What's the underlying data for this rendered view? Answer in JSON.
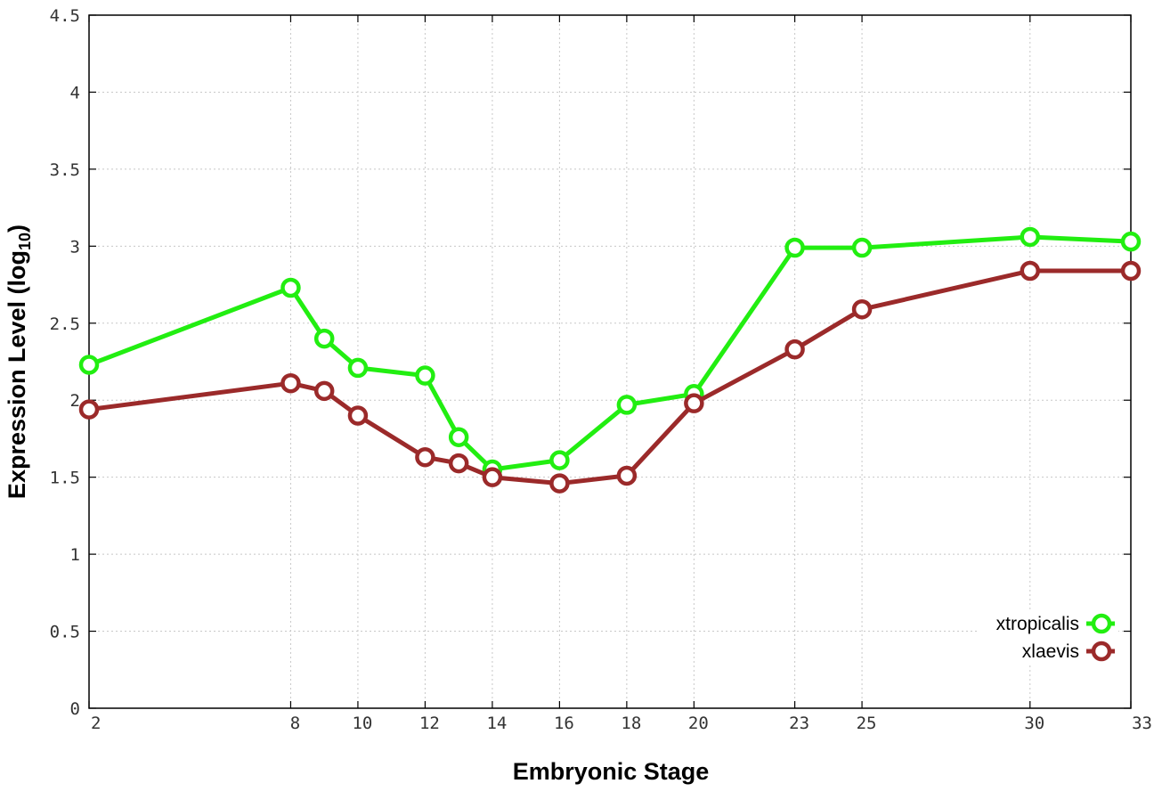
{
  "chart_data": {
    "type": "line",
    "x": [
      2,
      8,
      9,
      10,
      12,
      13,
      14,
      16,
      18,
      20,
      23,
      25,
      30,
      33
    ],
    "x_tick_labels": [
      "2",
      "8",
      "10",
      "12",
      "14",
      "16",
      "18",
      "20",
      "23",
      "25",
      "30",
      "33"
    ],
    "x_tick_values": [
      2,
      8,
      10,
      12,
      14,
      16,
      18,
      20,
      23,
      25,
      30,
      33
    ],
    "y_tick_labels": [
      "0",
      "0.5",
      "1",
      "1.5",
      "2",
      "2.5",
      "3",
      "3.5",
      "4",
      "4.5"
    ],
    "y_tick_values": [
      0,
      0.5,
      1,
      1.5,
      2,
      2.5,
      3,
      3.5,
      4,
      4.5
    ],
    "xlim": [
      2,
      33
    ],
    "ylim": [
      0,
      4.5
    ],
    "xlabel": "Embryonic Stage",
    "ylabel_main": "Expression Level (log",
    "ylabel_sub": "10",
    "ylabel_close": ")",
    "grid": true,
    "legend_position": "bottom-right",
    "series": [
      {
        "name": "xtropicalis",
        "color": "#22ee11",
        "values": [
          2.23,
          2.73,
          2.4,
          2.21,
          2.16,
          1.76,
          1.55,
          1.61,
          1.97,
          2.04,
          2.99,
          2.99,
          3.06,
          3.03
        ]
      },
      {
        "name": "xlaevis",
        "color": "#9b2a2a",
        "values": [
          1.94,
          2.11,
          2.06,
          1.9,
          1.63,
          1.59,
          1.5,
          1.46,
          1.51,
          1.98,
          2.33,
          2.59,
          2.84,
          2.84
        ]
      }
    ]
  }
}
